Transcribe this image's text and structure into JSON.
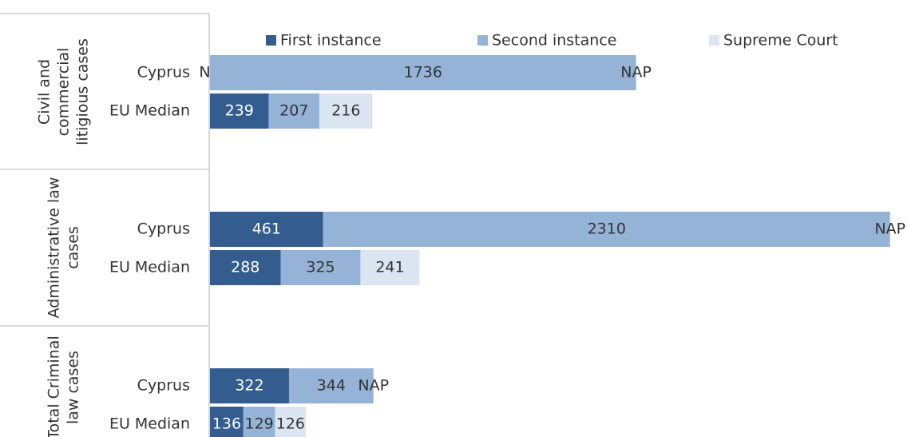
{
  "chart_data": {
    "type": "stacked-barh",
    "group_labels": [
      [
        "Civil and",
        "commercial",
        "litigious cases"
      ],
      [
        "Administrative law",
        "cases"
      ],
      [
        "Total Criminal",
        "law cases"
      ]
    ],
    "categories": [
      "Cyprus",
      "EU Median",
      "Cyprus",
      "EU Median",
      "Cyprus",
      "EU Median"
    ],
    "xlim": [
      0,
      2840
    ],
    "legend": "top",
    "series": [
      {
        "name": "First instance",
        "color": "#335c8f",
        "values": [
          null,
          239,
          461,
          288,
          322,
          136
        ],
        "value_labels": [
          "NA",
          "239",
          "461",
          "288",
          "322",
          "136"
        ]
      },
      {
        "name": "Second instance",
        "color": "#95b3d7",
        "values": [
          1736,
          207,
          2310,
          325,
          344,
          129
        ],
        "value_labels": [
          "1736",
          "207",
          "2310",
          "325",
          "344",
          "129"
        ]
      },
      {
        "name": "Supreme Court",
        "color": "#dce6f2",
        "values": [
          null,
          216,
          null,
          241,
          null,
          126
        ],
        "value_labels": [
          "NAP",
          "216",
          "NAP",
          "241",
          "NAP",
          "126"
        ]
      }
    ]
  }
}
